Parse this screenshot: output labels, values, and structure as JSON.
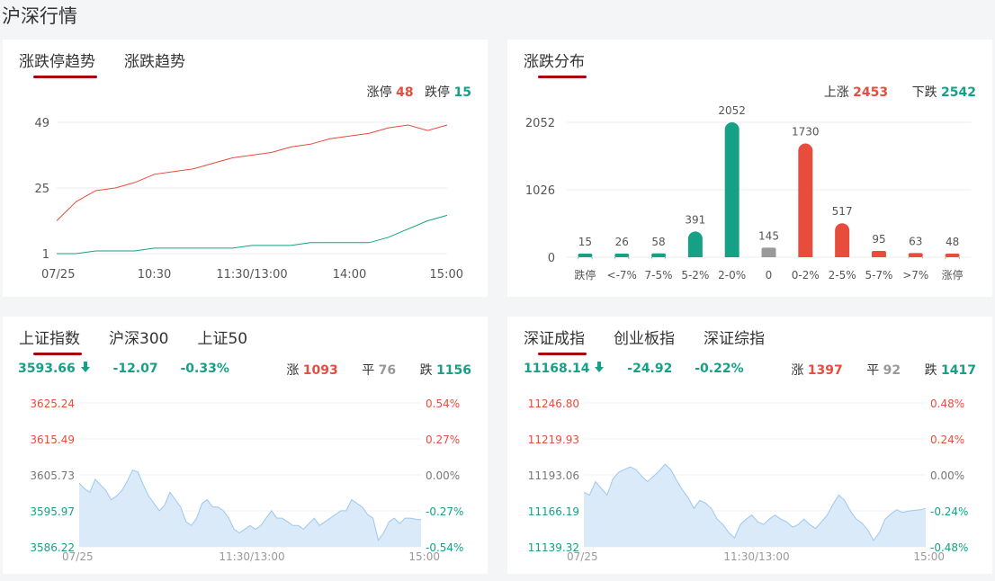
{
  "page_title": "沪深行情",
  "colors": {
    "up": "#e74c3c",
    "down": "#16a085",
    "flat": "#999999",
    "accent": "#a8000b",
    "area": "#dbeaf9",
    "area_line": "#9cc7f0"
  },
  "trend_card": {
    "tabs": [
      "涨跌停趋势",
      "涨跌趋势"
    ],
    "active_tab": 0,
    "legend": {
      "up_label": "涨停",
      "up_value": "48",
      "down_label": "跌停",
      "down_value": "15"
    },
    "chart_data": {
      "type": "line",
      "y_ticks": [
        "49",
        "25",
        "1"
      ],
      "ylim": [
        1,
        49
      ],
      "x_ticks": [
        "07/25",
        "10:30",
        "11:30/13:00",
        "14:00",
        "15:00"
      ],
      "series": [
        {
          "values": [
            13,
            20,
            24,
            25,
            27,
            30,
            31,
            32,
            34,
            36,
            37,
            38,
            40,
            41,
            43,
            44,
            45,
            47,
            48,
            46,
            48
          ]
        },
        {
          "values": [
            1,
            1,
            2,
            2,
            2,
            3,
            3,
            3,
            3,
            3,
            4,
            4,
            4,
            5,
            5,
            5,
            5,
            7,
            10,
            13,
            15
          ]
        }
      ]
    }
  },
  "dist_card": {
    "tabs": [
      "涨跌分布"
    ],
    "active_tab": 0,
    "legend": {
      "up_label": "上涨",
      "up_value": "2453",
      "down_label": "下跌",
      "down_value": "2542"
    },
    "chart_data": {
      "type": "bar",
      "y_ticks": [
        "2052",
        "1026",
        "0"
      ],
      "ylim": [
        0,
        2052
      ],
      "categories": [
        "跌停",
        "<-7%",
        "7-5%",
        "5-2%",
        "2-0%",
        "0",
        "0-2%",
        "2-5%",
        "5-7%",
        ">7%",
        "涨停"
      ],
      "values": [
        15,
        26,
        58,
        391,
        2052,
        145,
        1730,
        517,
        95,
        63,
        48
      ],
      "value_labels": [
        "15",
        "26",
        "58",
        "391",
        "2052",
        "145",
        "1730",
        "517",
        "95",
        "63",
        "48"
      ],
      "bar_colors": [
        "down",
        "down",
        "down",
        "down",
        "down",
        "flat",
        "up",
        "up",
        "up",
        "up",
        "up"
      ]
    }
  },
  "sh_card": {
    "tabs": [
      "上证指数",
      "沪深300",
      "上证50"
    ],
    "active_tab": 0,
    "price": "3593.66",
    "arrow": "down-arrow-icon",
    "change": "-12.07",
    "change_pct": "-0.33%",
    "stats": {
      "up_label": "涨",
      "up": "1093",
      "flat_label": "平",
      "flat": "76",
      "down_label": "跌",
      "down": "1156"
    },
    "chart_data": {
      "type": "area",
      "left_ticks": [
        "3625.24",
        "3615.49",
        "3605.73",
        "3595.97",
        "3586.22"
      ],
      "right_ticks": [
        "0.54%",
        "0.27%",
        "0.00%",
        "-0.27%",
        "-0.54%"
      ],
      "x_ticks": [
        "07/25",
        "11:30/13:00",
        "15:00"
      ],
      "ylim": [
        3586.22,
        3625.24
      ],
      "values": [
        3603.5,
        3602,
        3601,
        3604.5,
        3603,
        3601.5,
        3599,
        3600,
        3601.5,
        3604,
        3607,
        3606.5,
        3603,
        3600,
        3598,
        3596,
        3597.5,
        3601,
        3599,
        3597,
        3593,
        3592,
        3594,
        3598,
        3599,
        3597,
        3597,
        3596,
        3594,
        3591,
        3590,
        3591,
        3592,
        3591,
        3592,
        3594,
        3596,
        3594,
        3594,
        3593,
        3592,
        3592,
        3591,
        3592.5,
        3594,
        3592,
        3593,
        3594,
        3595,
        3596,
        3596,
        3599,
        3598,
        3597,
        3595,
        3594,
        3588,
        3590,
        3593,
        3594,
        3592.5,
        3594,
        3594,
        3593.7,
        3593.6
      ]
    }
  },
  "sz_card": {
    "tabs": [
      "深证成指",
      "创业板指",
      "深证综指"
    ],
    "active_tab": 0,
    "price": "11168.14",
    "arrow": "down-arrow-icon",
    "change": "-24.92",
    "change_pct": "-0.22%",
    "stats": {
      "up_label": "涨",
      "up": "1397",
      "flat_label": "平",
      "flat": "92",
      "down_label": "跌",
      "down": "1417"
    },
    "chart_data": {
      "type": "area",
      "left_ticks": [
        "11246.80",
        "11219.93",
        "11193.06",
        "11166.19",
        "11139.32"
      ],
      "right_ticks": [
        "0.48%",
        "0.24%",
        "0.00%",
        "-0.24%",
        "-0.48%"
      ],
      "x_ticks": [
        "07/25",
        "11:30/13:00",
        "15:00"
      ],
      "ylim": [
        11139.32,
        11246.8
      ],
      "values": [
        11180,
        11178,
        11188,
        11183,
        11178,
        11190,
        11195,
        11197,
        11199,
        11197,
        11192,
        11188,
        11192,
        11196,
        11201,
        11197,
        11189,
        11182,
        11176,
        11168,
        11174,
        11172,
        11168,
        11160,
        11156,
        11150,
        11146,
        11156,
        11160,
        11163,
        11158,
        11156,
        11160,
        11163,
        11160,
        11158,
        11154,
        11156,
        11160,
        11156,
        11153,
        11158,
        11163,
        11171,
        11178,
        11174,
        11166,
        11160,
        11157,
        11152,
        11144,
        11150,
        11160,
        11164,
        11167,
        11165,
        11166,
        11166.5,
        11167,
        11168.1
      ]
    }
  }
}
